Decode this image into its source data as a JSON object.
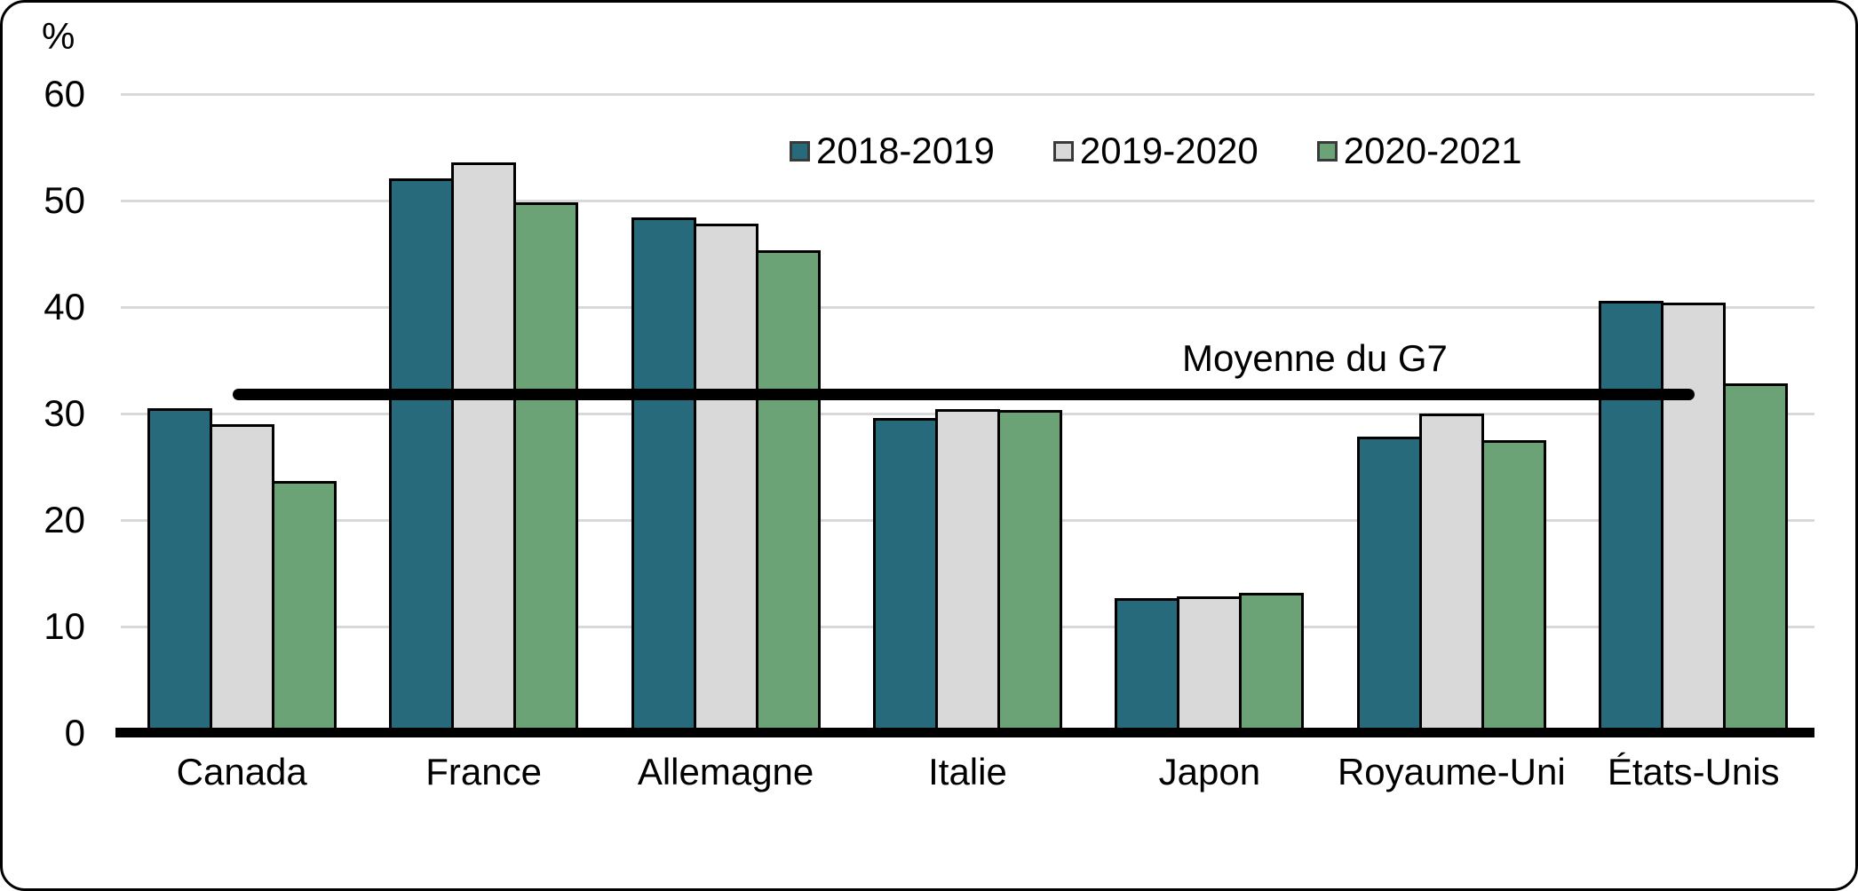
{
  "chart_data": {
    "type": "bar",
    "unit_label": "%",
    "categories": [
      "Canada",
      "France",
      "Allemagne",
      "Italie",
      "Japon",
      "Royaume-Uni",
      "États-Unis"
    ],
    "series": [
      {
        "name": "2018-2019",
        "color": "#266A7B",
        "values": [
          30.5,
          52.1,
          48.4,
          29.6,
          12.7,
          27.8,
          40.6
        ]
      },
      {
        "name": "2019-2020",
        "color": "#D9D9D9",
        "values": [
          29.0,
          53.6,
          47.8,
          30.4,
          12.8,
          30.0,
          40.4
        ]
      },
      {
        "name": "2020-2021",
        "color": "#6BA376",
        "values": [
          23.7,
          49.8,
          45.3,
          30.3,
          13.2,
          27.5,
          32.8
        ]
      }
    ],
    "ylim": [
      0,
      60
    ],
    "yticks": [
      0,
      10,
      20,
      30,
      40,
      50,
      60
    ],
    "grid": "horizontal",
    "legend_position": "top-center",
    "reference_line": {
      "label": "Moyenne du G7",
      "value": 31.8
    }
  },
  "colors": {
    "background": "#FFFFFF",
    "card_border": "#000000",
    "gridline": "#D9D9D9",
    "axis": "#000000",
    "bar_border": "#000000",
    "reference_line": "#000000"
  }
}
